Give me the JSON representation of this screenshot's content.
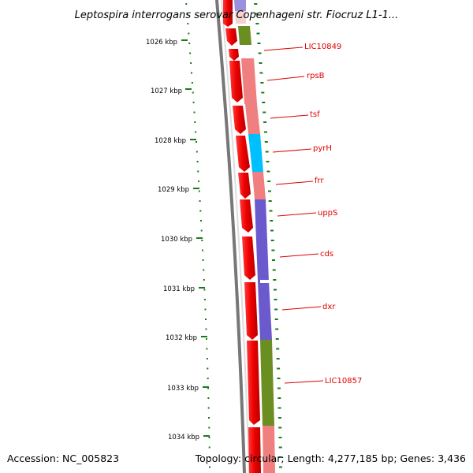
{
  "header": {
    "title": "Leptospira interrogans serovar Copenhageni str. Fiocruz L1-1..."
  },
  "footer": {
    "accession": "Accession: NC_005823",
    "summary": "Topology: circular; Length: 4,277,185 bp; Genes: 3,436"
  },
  "map": {
    "topology": "circular",
    "unit": "kbp",
    "ticks_kbp": [
      1026,
      1027,
      1028,
      1029,
      1030,
      1031,
      1032,
      1033,
      1034
    ],
    "tick_labels": [
      "1026 kbp",
      "1027 kbp",
      "1028 kbp",
      "1029 kbp",
      "1030 kbp",
      "1031 kbp",
      "1032 kbp",
      "1033 kbp",
      "1034 kbp"
    ],
    "gene_labels": [
      "LIC10849",
      "rpsB",
      "tsf",
      "pyrH",
      "frr",
      "uppS",
      "cds",
      "dxr",
      "LIC10857"
    ],
    "colors": {
      "ticks": "#1a7a1a",
      "backbone": "#777777",
      "cds_arrows": "#ee0000",
      "label_text": "#dd0000",
      "cog_light_red": "#f08080",
      "cog_cyan": "#00bfff",
      "cog_purple": "#6a5acd",
      "cog_olive": "#6b8e23"
    }
  }
}
